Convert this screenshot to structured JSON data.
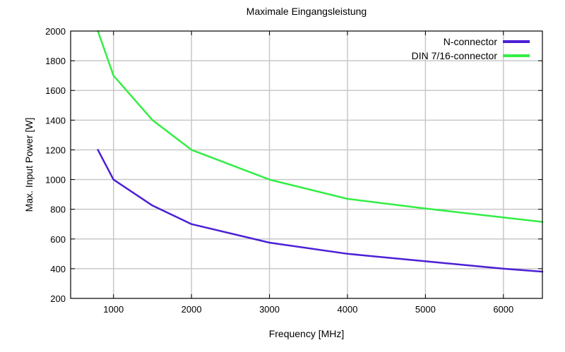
{
  "chart_data": {
    "type": "line",
    "title": "Maximale Eingangsleistung",
    "xlabel": "Frequency [MHz]",
    "ylabel": "Max. Input Power [W]",
    "xlim": [
      450,
      6500
    ],
    "ylim": [
      200,
      2000
    ],
    "xticks": [
      1000,
      2000,
      3000,
      4000,
      5000,
      6000
    ],
    "yticks": [
      200,
      400,
      600,
      800,
      1000,
      1200,
      1400,
      1600,
      1800,
      2000
    ],
    "grid": true,
    "legend_position": "top-right",
    "series": [
      {
        "name": "N-connector",
        "color": "#4b1fd6",
        "x": [
          800,
          1000,
          1500,
          2000,
          3000,
          4000,
          5000,
          6000,
          6500
        ],
        "y": [
          1200,
          1000,
          825,
          700,
          575,
          500,
          450,
          400,
          380
        ]
      },
      {
        "name": "DIN 7/16-connector",
        "color": "#33ee44",
        "x": [
          800,
          1000,
          1500,
          2000,
          3000,
          4000,
          5000,
          6000,
          6500
        ],
        "y": [
          2000,
          1700,
          1400,
          1200,
          1000,
          870,
          805,
          745,
          715
        ]
      }
    ]
  }
}
